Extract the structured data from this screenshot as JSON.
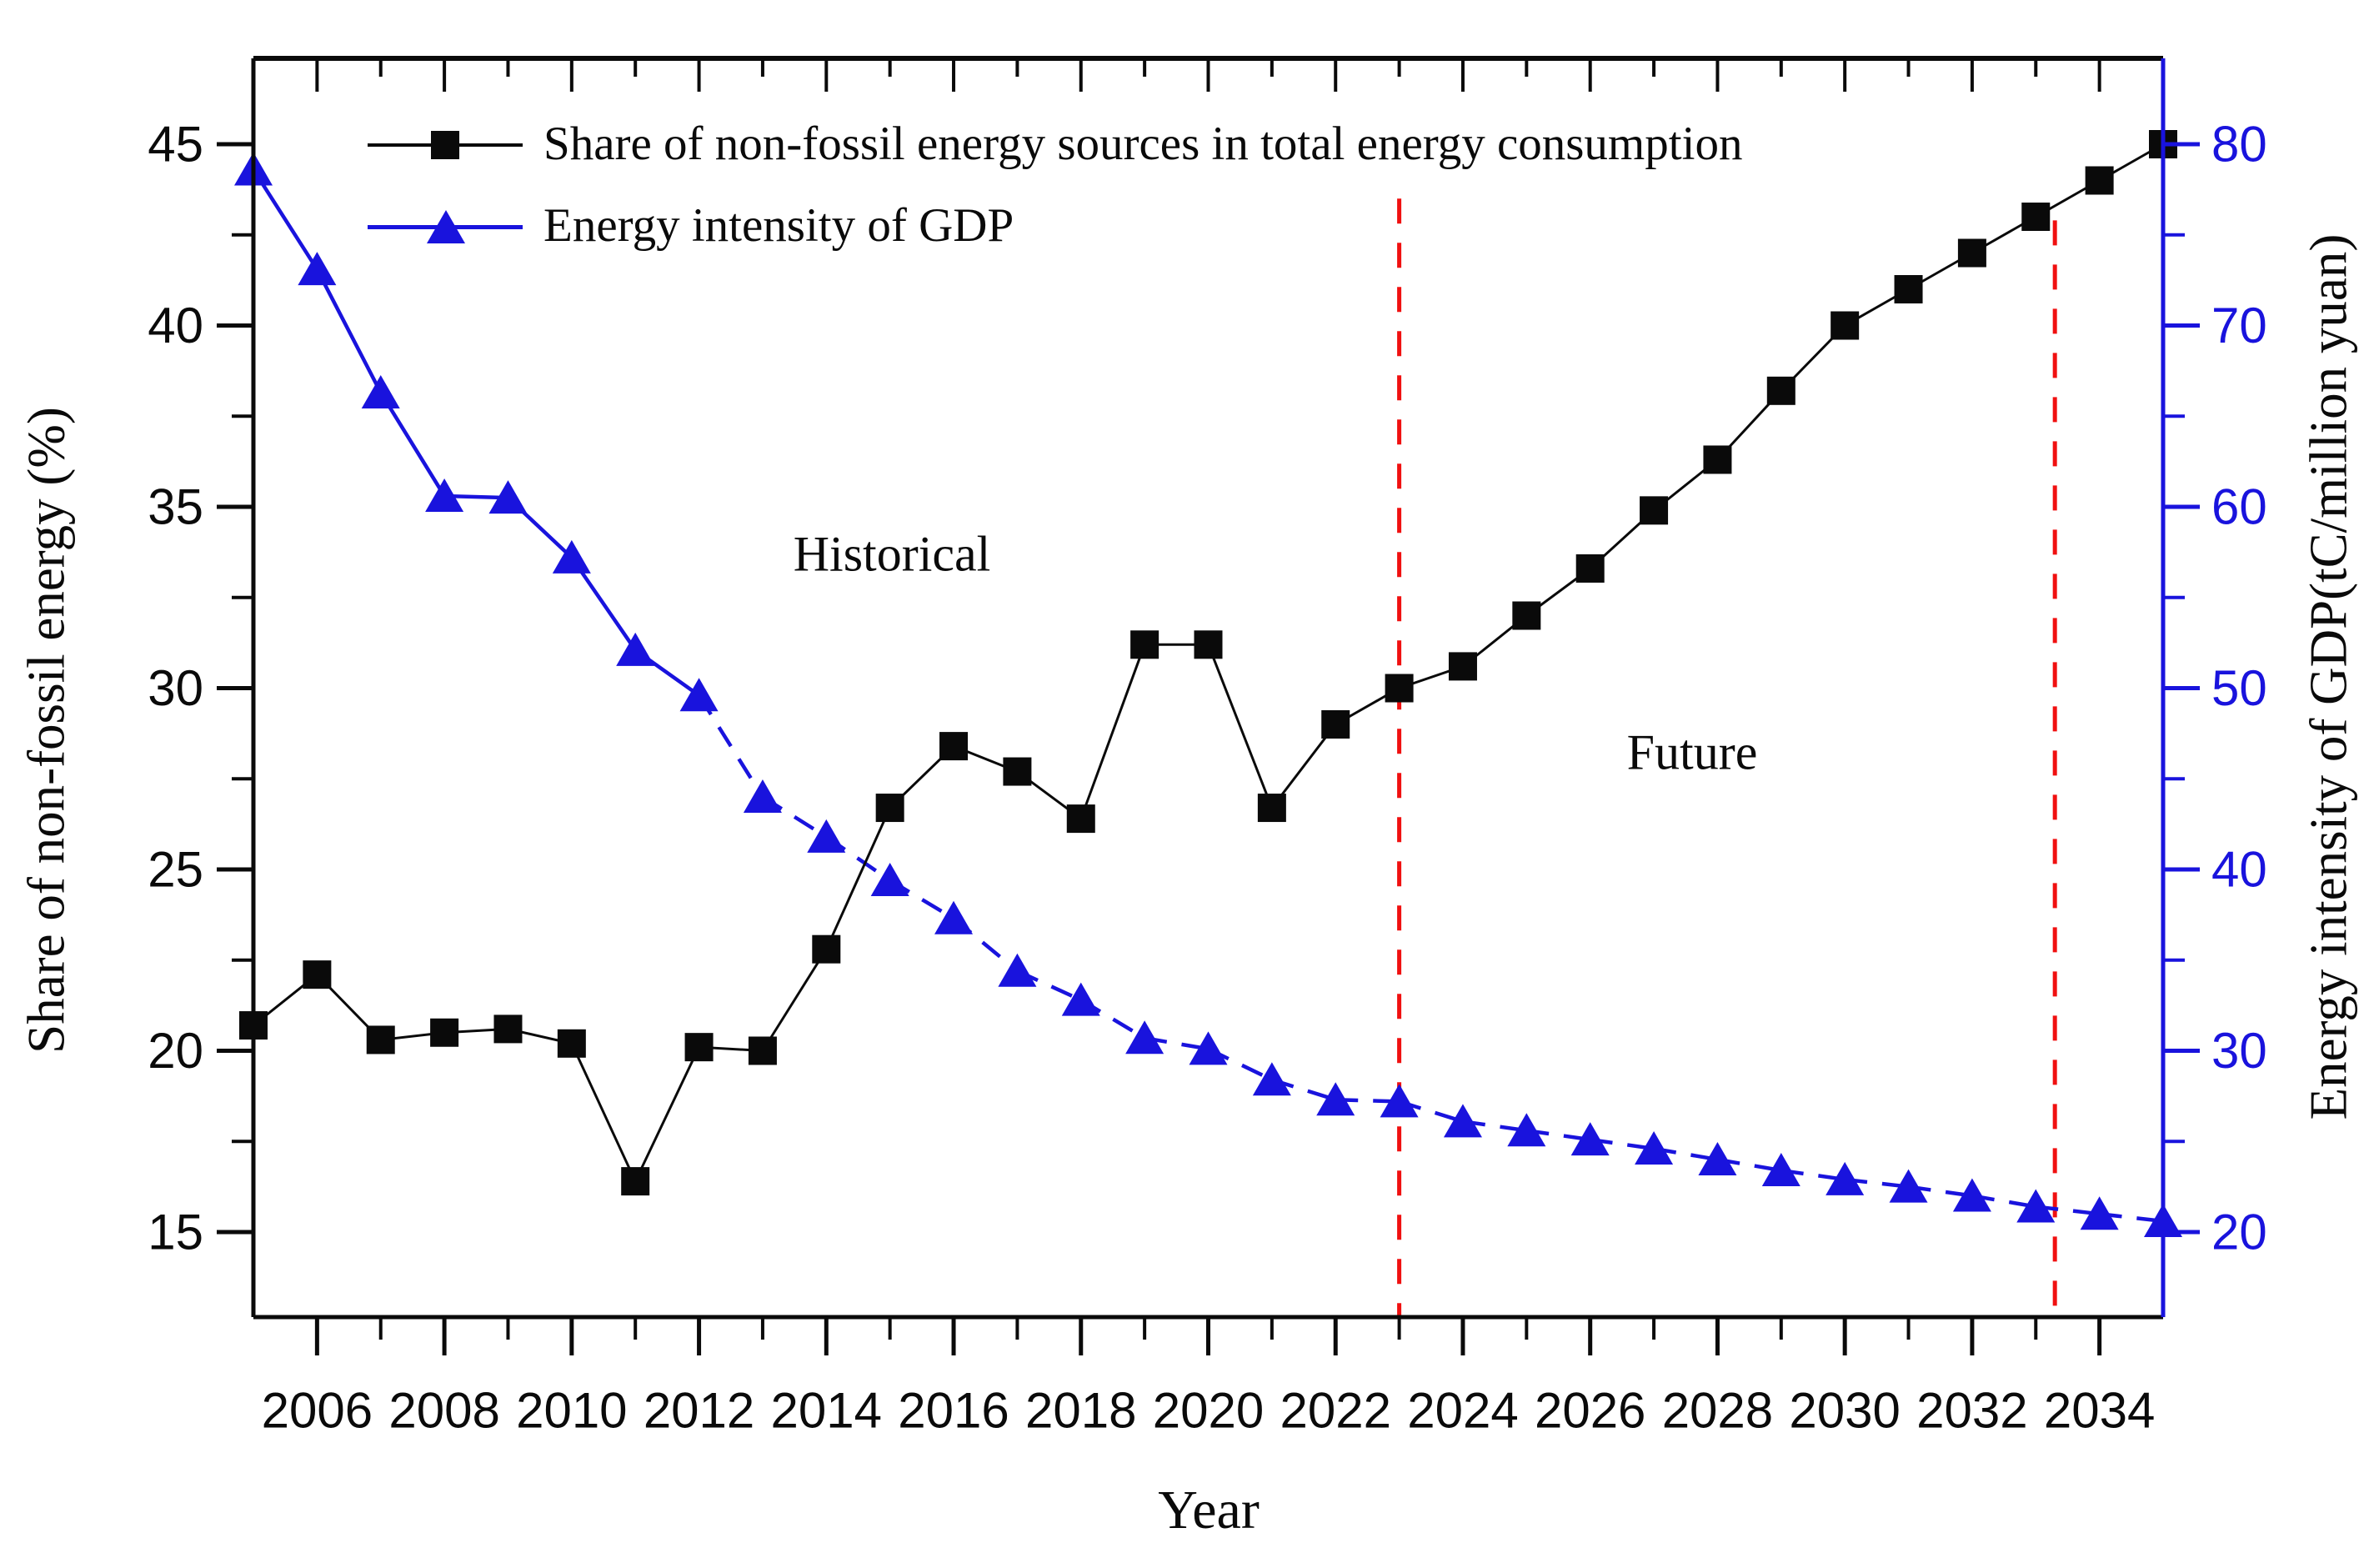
{
  "figure": {
    "x_title": "Year",
    "left_axis_title": "Share of non-fossil energy (%)",
    "right_axis_title": "Energy intensity of GDP(tC/million yuan)",
    "annotations": [
      {
        "text": "Historical",
        "year": 2015.0,
        "value_left": 33.7
      },
      {
        "text": "Future",
        "year": 2027.6,
        "value_left": 28.2
      }
    ],
    "legend": [
      {
        "label": "Share of non-fossil energy sources in total energy consumption",
        "marker": "square",
        "color": "#0a0a0a"
      },
      {
        "label": "Energy intensity of GDP",
        "marker": "triangle",
        "color": "#1913dd"
      }
    ]
  },
  "chart_data": {
    "type": "line",
    "x_years": [
      2005,
      2006,
      2007,
      2008,
      2009,
      2010,
      2011,
      2012,
      2013,
      2014,
      2015,
      2016,
      2017,
      2018,
      2019,
      2020,
      2021,
      2022,
      2023,
      2024,
      2025,
      2026,
      2027,
      2028,
      2029,
      2030,
      2031,
      2032,
      2033,
      2034,
      2035
    ],
    "series": [
      {
        "name": "Share of non-fossil energy sources in total energy consumption",
        "axis": "left",
        "marker": "square",
        "color": "#0a0a0a",
        "line_style": "solid",
        "values": [
          20.7,
          22.1,
          20.3,
          20.5,
          20.6,
          20.2,
          16.4,
          20.1,
          20.0,
          22.8,
          26.7,
          28.4,
          27.7,
          26.4,
          31.2,
          31.2,
          26.7,
          29.0,
          30.0,
          30.6,
          32.0,
          33.3,
          34.9,
          36.3,
          38.2,
          40.0,
          41.0,
          42.0,
          43.0,
          44.0,
          45.0
        ]
      },
      {
        "name": "Energy intensity of GDP",
        "axis": "right",
        "marker": "triangle",
        "color": "#1913dd",
        "line_style": "solid-then-dashed",
        "dashed_from_year": 2012,
        "values": [
          78.6,
          73.1,
          66.3,
          60.6,
          60.5,
          57.2,
          52.1,
          49.6,
          44.0,
          41.8,
          39.4,
          37.3,
          34.4,
          32.8,
          30.7,
          30.1,
          28.4,
          27.3,
          27.2,
          26.1,
          25.6,
          25.1,
          24.6,
          24.0,
          23.4,
          22.9,
          22.5,
          22.0,
          21.4,
          21.0,
          20.6
        ]
      }
    ],
    "left_axis": {
      "ticks": [
        15,
        20,
        25,
        30,
        35,
        40,
        45
      ],
      "minor_step": 2.5,
      "range_min": 12.65,
      "range_max": 47.4,
      "color": "#0a0a0a"
    },
    "right_axis": {
      "ticks": [
        20,
        30,
        40,
        50,
        60,
        70,
        80
      ],
      "minor_step": 5,
      "range_min": 15.3,
      "range_max": 84.8,
      "color": "#1913dd",
      "relation": "right = 2*left - 10"
    },
    "x_axis": {
      "labeled_ticks": [
        2006,
        2008,
        2010,
        2012,
        2014,
        2016,
        2018,
        2020,
        2022,
        2024,
        2026,
        2028,
        2030,
        2032,
        2034
      ],
      "minor_every_odd_year": true,
      "range_min": 2005,
      "range_max": 2035
    },
    "vlines": [
      {
        "year": 2023,
        "top_value_left": 43.5,
        "color": "#f01010",
        "style": "dashed"
      },
      {
        "year": 2033.3,
        "top_value_left": 42.9,
        "color": "#f01010",
        "style": "dashed"
      }
    ],
    "grid": false,
    "legend_position": "top-left-inside"
  }
}
